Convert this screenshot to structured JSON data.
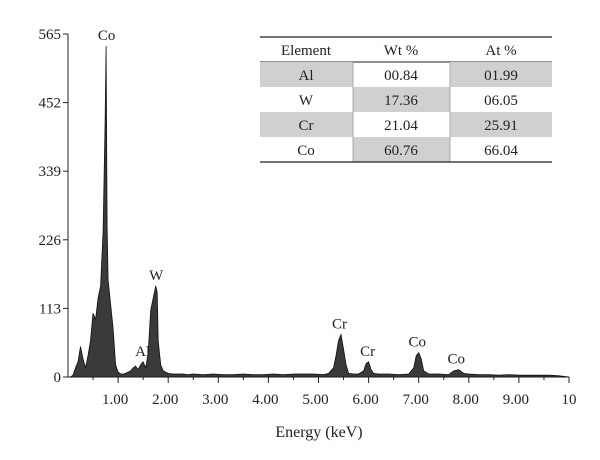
{
  "chart_data": {
    "type": "area",
    "xlabel": "Energy (keV)",
    "ylabel": "",
    "xlim": [
      0,
      10
    ],
    "ylim": [
      0,
      565
    ],
    "x_ticks": [
      {
        "value": 1,
        "label": "1.00"
      },
      {
        "value": 2,
        "label": "2.00"
      },
      {
        "value": 3,
        "label": "3.00"
      },
      {
        "value": 4,
        "label": "4.00"
      },
      {
        "value": 5,
        "label": "5.00"
      },
      {
        "value": 6,
        "label": "6.00"
      },
      {
        "value": 7,
        "label": "7.00"
      },
      {
        "value": 8,
        "label": "8.00"
      },
      {
        "value": 9,
        "label": "9.00"
      },
      {
        "value": 10,
        "label": "10"
      }
    ],
    "y_ticks": [
      {
        "value": 0,
        "label": "0"
      },
      {
        "value": 113,
        "label": "113"
      },
      {
        "value": 226,
        "label": "226"
      },
      {
        "value": 339,
        "label": "339"
      },
      {
        "value": 452,
        "label": "452"
      },
      {
        "value": 565,
        "label": "565"
      }
    ],
    "grid": false,
    "fill_color": "#3a3a3a",
    "series": [
      {
        "x": [
          0.05,
          0.1,
          0.15,
          0.2,
          0.25,
          0.3,
          0.35,
          0.4,
          0.45,
          0.5,
          0.55,
          0.6,
          0.65,
          0.7,
          0.72,
          0.74,
          0.76,
          0.78,
          0.8,
          0.85,
          0.9,
          0.95,
          1.0,
          1.05,
          1.1,
          1.15,
          1.2,
          1.25,
          1.3,
          1.35,
          1.4,
          1.45,
          1.5,
          1.55,
          1.6,
          1.65,
          1.7,
          1.75,
          1.78,
          1.8,
          1.85,
          1.9,
          1.95,
          2.0,
          2.1,
          2.2,
          2.3,
          2.4,
          2.5,
          2.7,
          2.9,
          3.1,
          3.3,
          3.5,
          3.7,
          3.9,
          4.1,
          4.3,
          4.5,
          4.7,
          4.9,
          5.1,
          5.2,
          5.3,
          5.35,
          5.4,
          5.45,
          5.5,
          5.55,
          5.6,
          5.7,
          5.8,
          5.9,
          5.95,
          6.0,
          6.05,
          6.1,
          6.2,
          6.4,
          6.6,
          6.8,
          6.9,
          6.95,
          7.0,
          7.05,
          7.1,
          7.2,
          7.4,
          7.6,
          7.7,
          7.8,
          7.9,
          8.0,
          8.2,
          8.4,
          8.6,
          8.8,
          9.0,
          9.2,
          9.4,
          9.6,
          9.8,
          10.0
        ],
        "y": [
          0,
          3,
          15,
          25,
          50,
          30,
          15,
          35,
          60,
          105,
          95,
          130,
          150,
          240,
          330,
          420,
          545,
          250,
          160,
          120,
          80,
          20,
          8,
          5,
          5,
          6,
          8,
          10,
          15,
          18,
          12,
          20,
          25,
          15,
          40,
          110,
          130,
          150,
          140,
          60,
          20,
          10,
          8,
          6,
          5,
          5,
          5,
          4,
          5,
          4,
          5,
          4,
          4,
          5,
          4,
          4,
          5,
          4,
          5,
          5,
          5,
          4,
          6,
          15,
          35,
          60,
          70,
          45,
          20,
          6,
          5,
          5,
          10,
          22,
          25,
          12,
          6,
          5,
          5,
          4,
          5,
          15,
          35,
          40,
          30,
          10,
          5,
          5,
          4,
          10,
          12,
          6,
          5,
          4,
          4,
          3,
          4,
          3,
          3,
          3,
          3,
          2,
          0
        ]
      }
    ],
    "annotations": [
      {
        "text": "Co",
        "x": 0.77,
        "y": 545
      },
      {
        "text": "W",
        "x": 1.76,
        "y": 150
      },
      {
        "text": "Al",
        "x": 1.49,
        "y": 25
      },
      {
        "text": "Cr",
        "x": 5.42,
        "y": 70
      },
      {
        "text": "Cr",
        "x": 5.98,
        "y": 25
      },
      {
        "text": "Co",
        "x": 6.97,
        "y": 40
      },
      {
        "text": "Co",
        "x": 7.75,
        "y": 12
      }
    ],
    "table": {
      "headers": [
        "Element",
        "Wt %",
        "At %"
      ],
      "rows": [
        {
          "element": "Al",
          "wt": "00.84",
          "at": "01.99",
          "shaded": true
        },
        {
          "element": "W",
          "wt": "17.36",
          "at": "06.05",
          "shaded": false
        },
        {
          "element": "Cr",
          "wt": "21.04",
          "at": "25.91",
          "shaded": true
        },
        {
          "element": "Co",
          "wt": "60.76",
          "at": "66.04",
          "shaded": false
        }
      ],
      "shade_color": "#d0d0d0"
    }
  }
}
